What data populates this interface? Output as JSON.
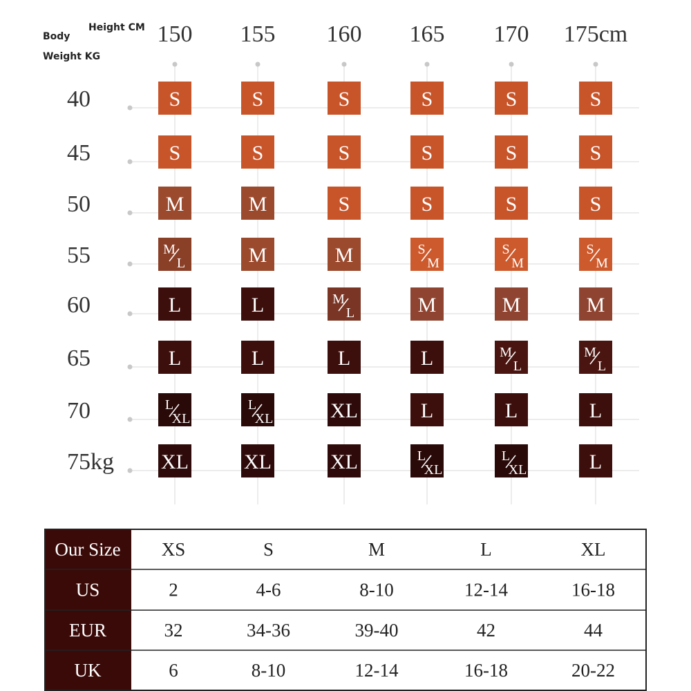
{
  "header": {
    "body": "Body",
    "height_label": "Height CM",
    "weight_label": "Weight KG"
  },
  "heights": [
    "150",
    "155",
    "160",
    "165",
    "170",
    "175cm"
  ],
  "weights": [
    "40",
    "45",
    "50",
    "55",
    "60",
    "65",
    "70",
    "75kg"
  ],
  "grid": [
    [
      {
        "label": "S",
        "color": "#c8552a"
      },
      {
        "label": "S",
        "color": "#c8552a"
      },
      {
        "label": "S",
        "color": "#c8552a"
      },
      {
        "label": "S",
        "color": "#c8552a"
      },
      {
        "label": "S",
        "color": "#c8552a"
      },
      {
        "label": "S",
        "color": "#c8552a"
      }
    ],
    [
      {
        "label": "S",
        "color": "#c8552a"
      },
      {
        "label": "S",
        "color": "#c8552a"
      },
      {
        "label": "S",
        "color": "#c8552a"
      },
      {
        "label": "S",
        "color": "#c8552a"
      },
      {
        "label": "S",
        "color": "#c8552a"
      },
      {
        "label": "S",
        "color": "#c8552a"
      }
    ],
    [
      {
        "label": "M",
        "color": "#9b4a2e"
      },
      {
        "label": "M",
        "color": "#9b4a2e"
      },
      {
        "label": "S",
        "color": "#c8552a"
      },
      {
        "label": "S",
        "color": "#c8552a"
      },
      {
        "label": "S",
        "color": "#c8552a"
      },
      {
        "label": "S",
        "color": "#c8552a"
      }
    ],
    [
      {
        "top": "M",
        "bottom": "L",
        "color": "#8a3f27"
      },
      {
        "label": "M",
        "color": "#9b4a2e"
      },
      {
        "label": "M",
        "color": "#9b4a2e"
      },
      {
        "top": "S",
        "bottom": "M",
        "color": "#cd5a2c"
      },
      {
        "top": "S",
        "bottom": "M",
        "color": "#cd5a2c"
      },
      {
        "top": "S",
        "bottom": "M",
        "color": "#cd5a2c"
      }
    ],
    [
      {
        "label": "L",
        "color": "#3d0f0c"
      },
      {
        "label": "L",
        "color": "#3d0f0c"
      },
      {
        "top": "M",
        "bottom": "L",
        "color": "#7a3524"
      },
      {
        "label": "M",
        "color": "#8e4430"
      },
      {
        "label": "M",
        "color": "#8e4430"
      },
      {
        "label": "M",
        "color": "#8e4430"
      }
    ],
    [
      {
        "label": "L",
        "color": "#3d0f0c"
      },
      {
        "label": "L",
        "color": "#3d0f0c"
      },
      {
        "label": "L",
        "color": "#3d0f0c"
      },
      {
        "label": "L",
        "color": "#3d0f0c"
      },
      {
        "top": "M",
        "bottom": "L",
        "color": "#4a1510"
      },
      {
        "top": "M",
        "bottom": "L",
        "color": "#4a1510"
      }
    ],
    [
      {
        "top": "L",
        "bottom": "XL",
        "color": "#2a0a08"
      },
      {
        "top": "L",
        "bottom": "XL",
        "color": "#2a0a08"
      },
      {
        "label": "XL",
        "color": "#2e0b0a"
      },
      {
        "label": "L",
        "color": "#3d0f0c"
      },
      {
        "label": "L",
        "color": "#3d0f0c"
      },
      {
        "label": "L",
        "color": "#3d0f0c"
      }
    ],
    [
      {
        "label": "XL",
        "color": "#2e0b0a"
      },
      {
        "label": "XL",
        "color": "#2e0b0a"
      },
      {
        "label": "XL",
        "color": "#2e0b0a"
      },
      {
        "top": "L",
        "bottom": "XL",
        "color": "#2a0a08"
      },
      {
        "top": "L",
        "bottom": "XL",
        "color": "#2a0a08"
      },
      {
        "label": "L",
        "color": "#3d0f0c"
      }
    ]
  ],
  "table": {
    "header": [
      "Our Size",
      "XS",
      "S",
      "M",
      "L",
      "XL"
    ],
    "rows": [
      [
        "US",
        "2",
        "4-6",
        "8-10",
        "12-14",
        "16-18"
      ],
      [
        "EUR",
        "32",
        "34-36",
        "39-40",
        "42",
        "44"
      ],
      [
        "UK",
        "6",
        "8-10",
        "12-14",
        "16-18",
        "20-22"
      ]
    ]
  }
}
